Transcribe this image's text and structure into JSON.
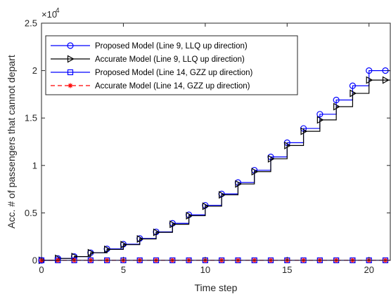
{
  "chart_data": {
    "type": "line",
    "title": "",
    "xlabel": "Time step",
    "ylabel": "Acc. # of passengers that cannot depart",
    "xlim": [
      0,
      21.3
    ],
    "ylim": [
      0,
      25000
    ],
    "xticks": [
      0,
      5,
      10,
      15,
      20
    ],
    "yticks": [
      0,
      5000,
      10000,
      15000,
      20000,
      25000
    ],
    "ytick_labels": [
      "0",
      "0.5",
      "1",
      "1.5",
      "2",
      "2.5"
    ],
    "y_exponent_label": "×10",
    "y_exponent_power": "4",
    "grid": false,
    "legend_position": "top-left",
    "step": true,
    "series": [
      {
        "name": "Proposed Model (Line 9, LLQ up direction)",
        "color": "#0000ff",
        "marker": "circle",
        "line_style": "solid",
        "x": [
          0,
          1,
          2,
          3,
          4,
          5,
          6,
          7,
          8,
          9,
          10,
          11,
          12,
          13,
          14,
          15,
          16,
          17,
          18,
          19,
          20,
          21
        ],
        "y": [
          0,
          200,
          400,
          800,
          1200,
          1700,
          2300,
          3000,
          3900,
          4800,
          5800,
          7000,
          8200,
          9500,
          10900,
          12400,
          13900,
          15400,
          16900,
          18400,
          20000,
          20000
        ]
      },
      {
        "name": "Accurate Model (Line 9, LLQ up direction)",
        "color": "#000000",
        "marker": "triangle-right",
        "line_style": "solid",
        "x": [
          0,
          1,
          2,
          3,
          4,
          5,
          6,
          7,
          8,
          9,
          10,
          11,
          12,
          13,
          14,
          15,
          16,
          17,
          18,
          19,
          20,
          21
        ],
        "y": [
          0,
          200,
          400,
          800,
          1150,
          1650,
          2250,
          2950,
          3800,
          4700,
          5700,
          6900,
          8050,
          9350,
          10700,
          12100,
          13600,
          14800,
          16200,
          17600,
          19000,
          19000
        ]
      },
      {
        "name": "Proposed Model (Line 14, GZZ up direction)",
        "color": "#0000ff",
        "marker": "square",
        "line_style": "solid",
        "x": [
          0,
          1,
          2,
          3,
          4,
          5,
          6,
          7,
          8,
          9,
          10,
          11,
          12,
          13,
          14,
          15,
          16,
          17,
          18,
          19,
          20,
          21
        ],
        "y": [
          0,
          0,
          0,
          0,
          0,
          0,
          0,
          0,
          0,
          0,
          0,
          0,
          0,
          0,
          0,
          0,
          0,
          0,
          0,
          0,
          0,
          0
        ]
      },
      {
        "name": "Accurate Model (Line 14, GZZ up direction)",
        "color": "#ff0000",
        "marker": "asterisk",
        "line_style": "dashed",
        "x": [
          0,
          1,
          2,
          3,
          4,
          5,
          6,
          7,
          8,
          9,
          10,
          11,
          12,
          13,
          14,
          15,
          16,
          17,
          18,
          19,
          20,
          21
        ],
        "y": [
          0,
          0,
          0,
          0,
          0,
          0,
          0,
          0,
          0,
          0,
          0,
          0,
          0,
          0,
          0,
          0,
          0,
          0,
          0,
          0,
          0,
          0
        ]
      }
    ]
  }
}
